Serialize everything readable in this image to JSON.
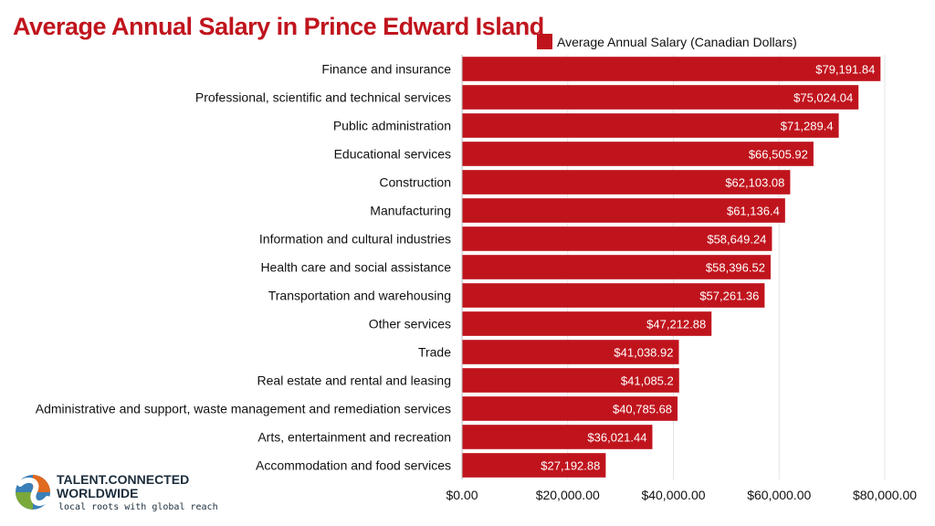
{
  "colors": {
    "bar": "#c0141d",
    "title": "#c0141d",
    "grid": "#e4e4e4",
    "text": "#111111",
    "label_text": "#ffffff"
  },
  "chart_data": {
    "type": "bar",
    "orientation": "horizontal",
    "title": "Average Annual Salary in Prince Edward Island",
    "legend": {
      "position": "top-right",
      "entries": [
        "Average Annual Salary (Canadian Dollars)"
      ]
    },
    "categories": [
      "Finance and insurance",
      "Professional, scientific and technical services",
      "Public administration",
      "Educational services",
      "Construction",
      "Manufacturing",
      "Information and cultural industries",
      "Health care and social assistance",
      "Transportation and warehousing",
      "Other services",
      "Trade",
      "Real estate and rental and leasing",
      "Administrative and support, waste management and remediation services",
      "Arts, entertainment and recreation",
      "Accommodation and food services"
    ],
    "series": [
      {
        "name": "Average Annual Salary (Canadian Dollars)",
        "values": [
          79191.84,
          75024.04,
          71289.4,
          66505.92,
          62103.08,
          61136.4,
          58649.24,
          58396.52,
          57261.36,
          47212.88,
          41038.92,
          41085.2,
          40785.68,
          36021.44,
          27192.88
        ],
        "labels": [
          "$79,191.84",
          "$75,024.04",
          "$71,289.4",
          "$66,505.92",
          "$62,103.08",
          "$61,136.4",
          "$58,649.24",
          "$58,396.52",
          "$57,261.36",
          "$47,212.88",
          "$41,038.92",
          "$41,085.2",
          "$40,785.68",
          "$36,021.44",
          "$27,192.88"
        ]
      }
    ],
    "x_ticks": [
      0,
      20000,
      40000,
      60000,
      80000
    ],
    "x_tick_labels": [
      "$0.00",
      "$20,000.00",
      "$40,000.00",
      "$60,000.00",
      "$80,000.00"
    ],
    "xlim": [
      0,
      80000
    ],
    "grid": true,
    "xlabel": "",
    "ylabel": ""
  },
  "logo": {
    "name_line1": "TALENT.CONNECTED",
    "name_line2": "WORLDWIDE",
    "tagline": "local roots with global reach"
  }
}
